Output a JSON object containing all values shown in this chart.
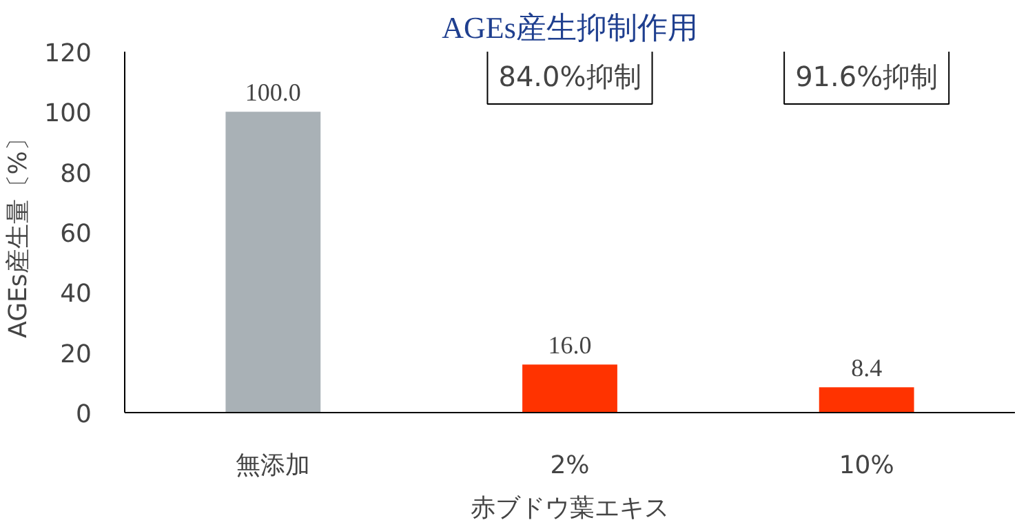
{
  "chart_data": {
    "type": "bar",
    "title": "AGEs産生抑制作用",
    "ylabel": "AGEs産生量〔%〕",
    "categories": [
      "無添加",
      "2%",
      "10%"
    ],
    "values": [
      100.0,
      16.0,
      8.4
    ],
    "value_labels": [
      "100.0",
      "16.0",
      "8.4"
    ],
    "colors": [
      "#a9b1b6",
      "#ff3300",
      "#ff3300"
    ],
    "ylim": [
      0,
      120
    ],
    "yticks": [
      0,
      20,
      40,
      60,
      80,
      100,
      120
    ],
    "grid": false,
    "annotations": [
      "84.0%抑制",
      "91.6%抑制",
      "赤ブドウ葉エキス"
    ]
  }
}
